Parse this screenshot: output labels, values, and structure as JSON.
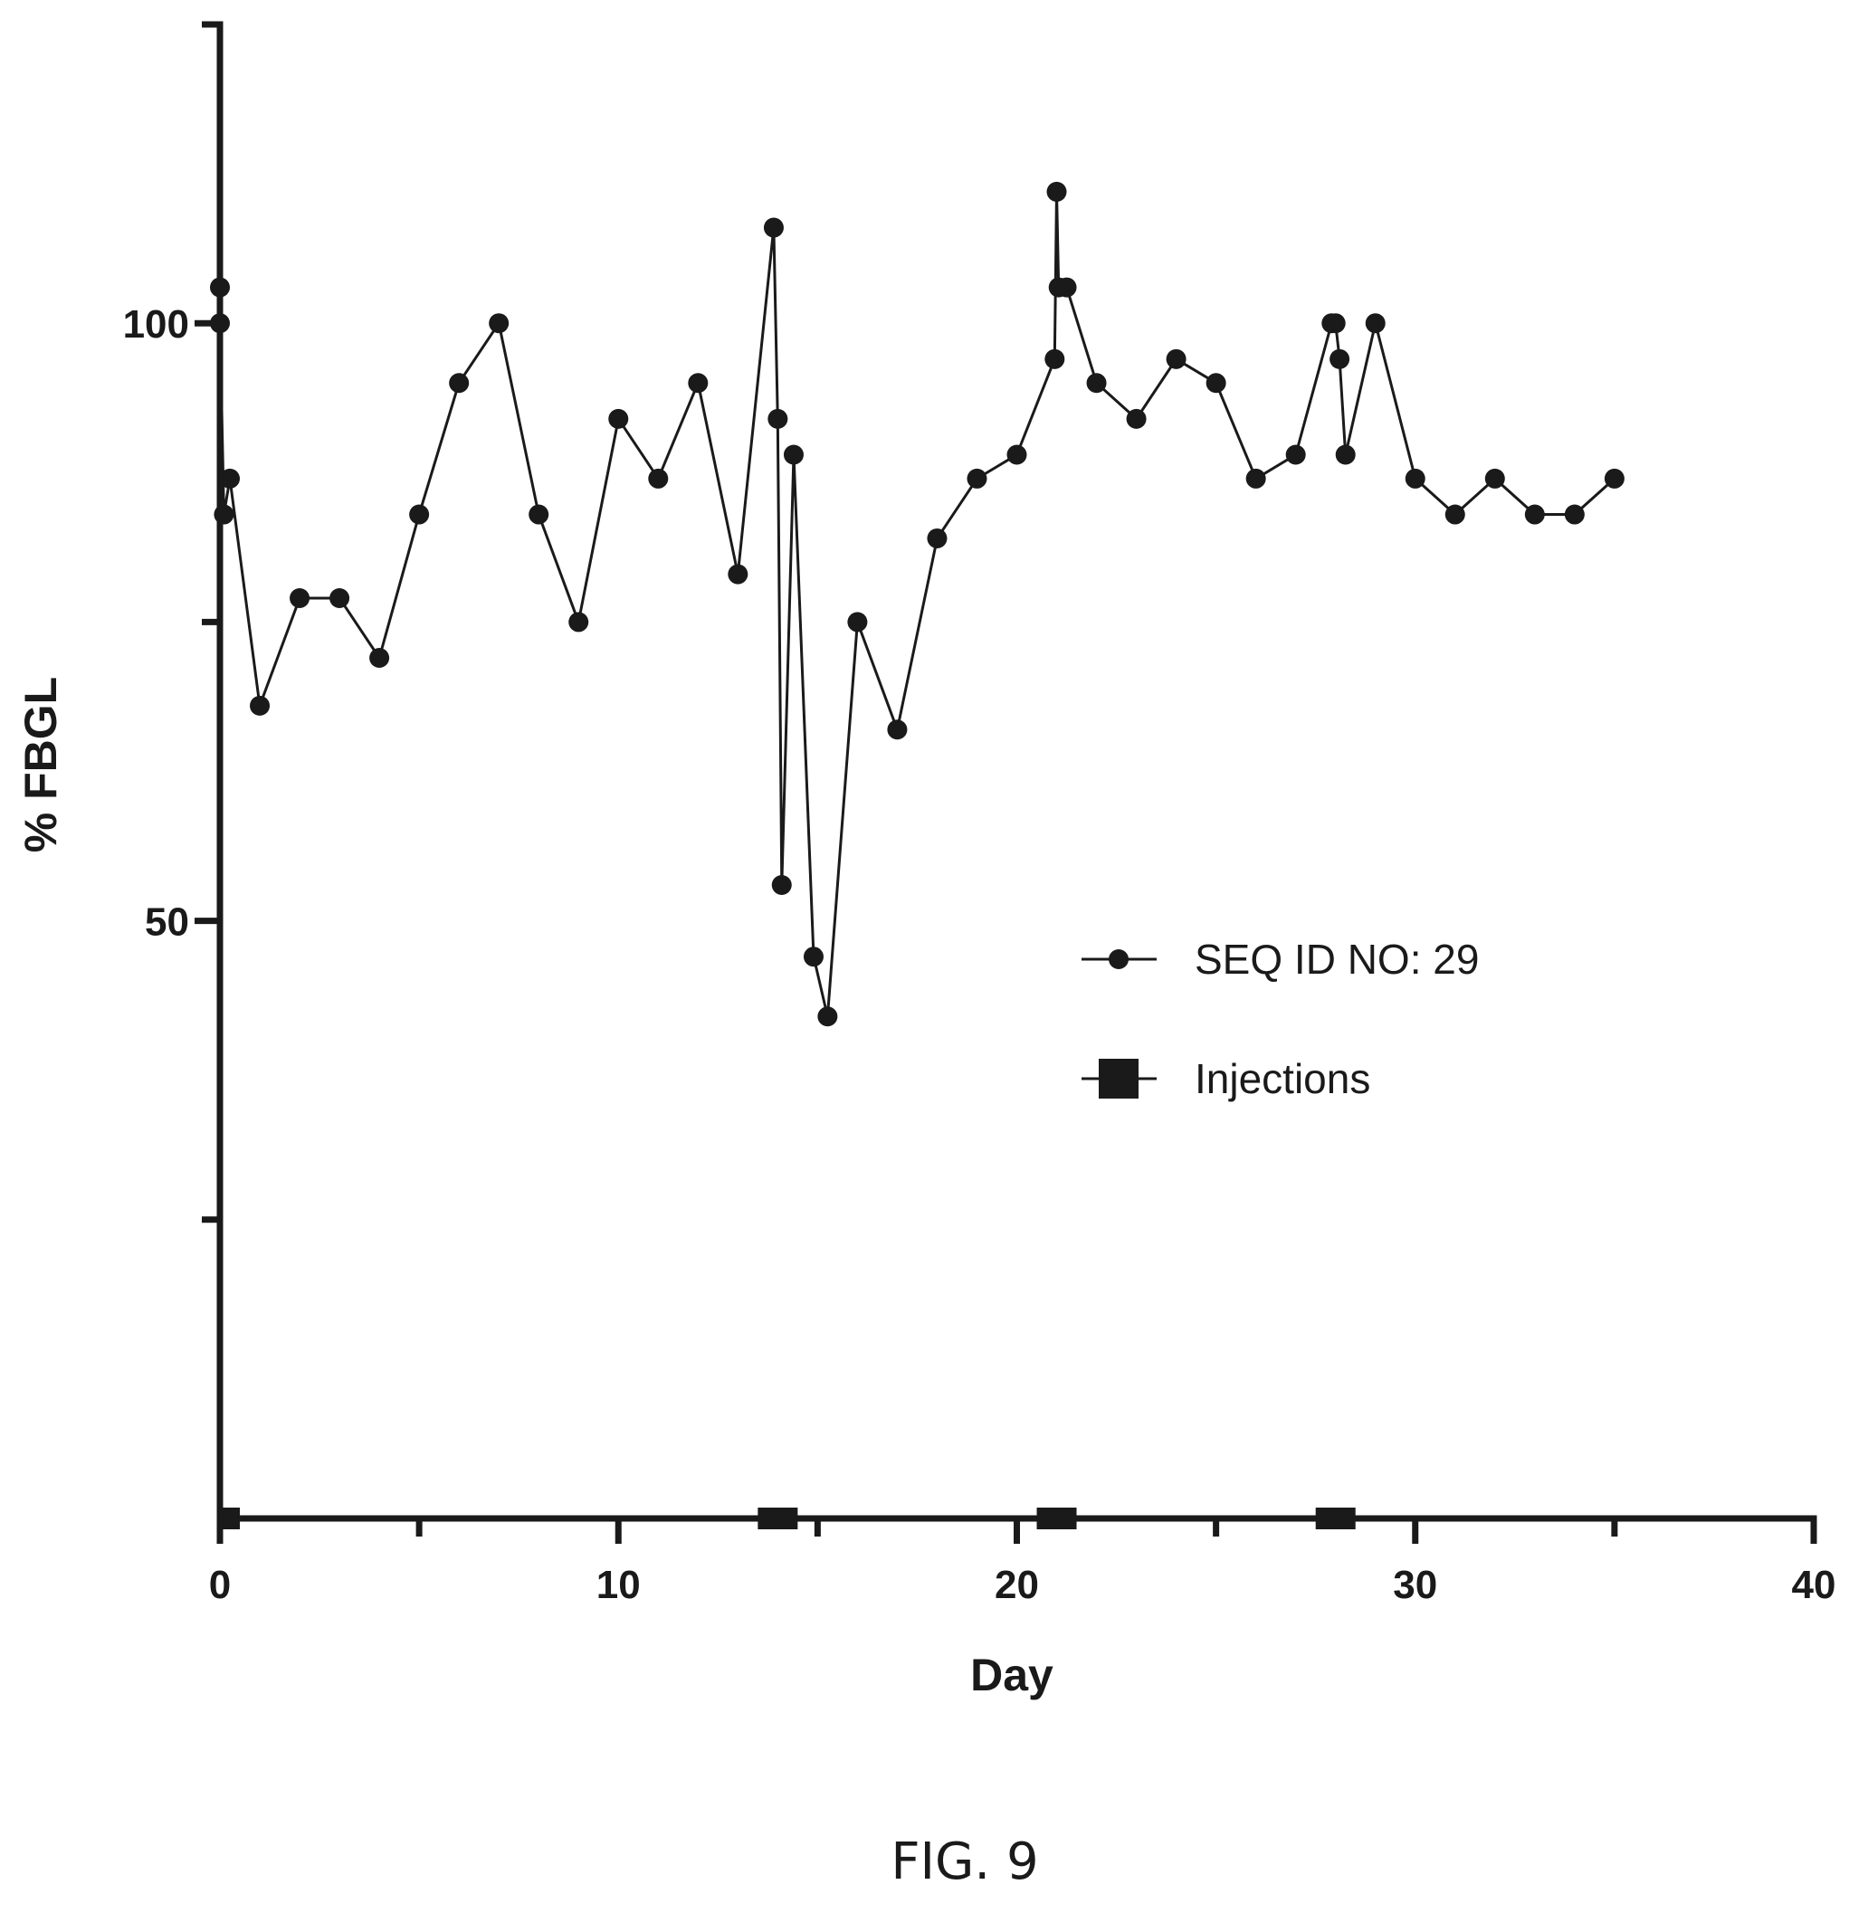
{
  "figure": {
    "caption": "FIG. 9"
  },
  "colors": {
    "ink": "#1a1a1a",
    "background": "#ffffff"
  },
  "chart_data": {
    "type": "line",
    "title": "",
    "xlabel": "Day",
    "ylabel": "% FBGL",
    "xlim": [
      0,
      40
    ],
    "ylim": [
      0,
      125
    ],
    "x_ticks": [
      0,
      10,
      20,
      30,
      40
    ],
    "x_minor_ticks": [
      5,
      15,
      25,
      35
    ],
    "y_ticks": [
      50,
      100
    ],
    "y_tick_labels": [
      "50",
      "100"
    ],
    "y_minor_ticks": [
      25,
      75,
      125
    ],
    "grid": false,
    "legend_placement": "center-right",
    "series": [
      {
        "name": "SEQ ID NO: 29",
        "marker": "circle",
        "x": [
          0,
          0,
          0.1,
          0.25,
          1,
          2,
          3,
          4,
          5,
          6,
          7,
          8,
          9,
          10,
          11,
          12,
          13,
          13.9,
          14,
          14.1,
          14.4,
          14.9,
          15.25,
          16,
          17,
          18,
          19,
          20,
          20.95,
          21,
          21.05,
          21.25,
          22,
          23,
          24,
          25,
          26,
          27,
          27.9,
          28,
          28.1,
          28.25,
          29,
          30,
          31,
          32,
          33,
          34,
          35
        ],
        "y": [
          103,
          100,
          84,
          87,
          68,
          77,
          77,
          72,
          84,
          95,
          100,
          84,
          75,
          92,
          87,
          95,
          79,
          108,
          92,
          53,
          89,
          47,
          42,
          75,
          66,
          82,
          87,
          89,
          97,
          111,
          103,
          103,
          95,
          92,
          97,
          95,
          87,
          89,
          100,
          100,
          97,
          89,
          100,
          87,
          84,
          87,
          84,
          84,
          87
        ]
      },
      {
        "name": "Injections",
        "marker": "square",
        "x": [
          0,
          14,
          21,
          28
        ],
        "y": [
          0,
          0,
          0,
          0
        ]
      }
    ]
  }
}
